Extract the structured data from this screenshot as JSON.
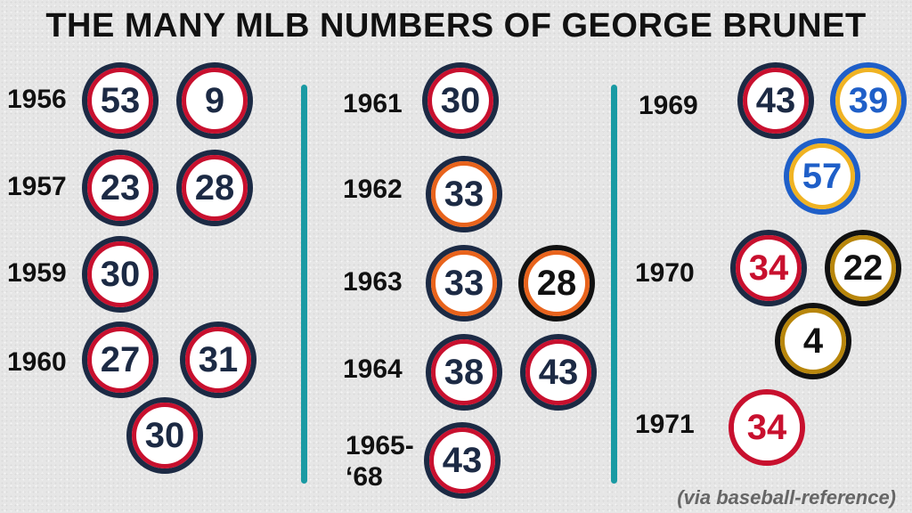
{
  "title": "THE MANY MLB NUMBERS OF GEORGE BRUNET",
  "credit": "(via baseball-reference)",
  "colors": {
    "navy": "#1c2a44",
    "red": "#c8102e",
    "orange": "#e8631c",
    "gold": "#f0b323",
    "blue": "#1f5fc8",
    "black": "#111111",
    "brown_gold": "#b8860b",
    "teal": "#1a9aa3"
  },
  "years": {
    "y1956": "1956",
    "y1957": "1957",
    "y1959": "1959",
    "y1960": "1960",
    "y1961": "1961",
    "y1962": "1962",
    "y1963": "1963",
    "y1964": "1964",
    "y1965_68_line1": "1965-",
    "y1965_68_line2": "‘68",
    "y1969": "1969",
    "y1970": "1970",
    "y1971": "1971"
  },
  "numbers": {
    "n1956_a": "53",
    "n1956_b": "9",
    "n1957_a": "23",
    "n1957_b": "28",
    "n1959_a": "30",
    "n1960_a": "27",
    "n1960_b": "31",
    "n1960_c": "30",
    "n1961_a": "30",
    "n1962_a": "33",
    "n1963_a": "33",
    "n1963_b": "28",
    "n1964_a": "38",
    "n1964_b": "43",
    "n1965_68_a": "43",
    "n1969_a": "43",
    "n1969_b": "39",
    "n1969_c": "57",
    "n1970_a": "34",
    "n1970_b": "22",
    "n1970_c": "4",
    "n1971_a": "34"
  }
}
